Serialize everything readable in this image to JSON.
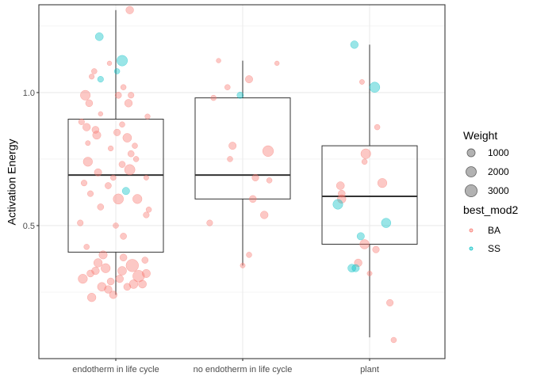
{
  "chart_data": {
    "type": "boxplot+jitter",
    "ylabel": "Activation Energy",
    "xlabel": "",
    "ylim": [
      0.0,
      1.33
    ],
    "yticks": [
      0.5,
      1.0
    ],
    "ytick_labels": [
      "0.5",
      "1.0"
    ],
    "y_minor_gridlines": [
      0.25,
      0.75,
      1.25
    ],
    "grid": true,
    "categories": [
      "endotherm in life cycle",
      "no endotherm in life cycle",
      "plant"
    ],
    "boxes": [
      {
        "category": "endotherm in life cycle",
        "whisker_low": 0.24,
        "q1": 0.4,
        "median": 0.69,
        "q3": 0.9,
        "whisker_high": 1.31
      },
      {
        "category": "no endotherm in life cycle",
        "whisker_low": 0.35,
        "q1": 0.6,
        "median": 0.69,
        "q3": 0.98,
        "whisker_high": 1.12
      },
      {
        "category": "plant",
        "whisker_low": 0.08,
        "q1": 0.43,
        "median": 0.61,
        "q3": 0.8,
        "whisker_high": 1.18
      }
    ],
    "colors": {
      "BA": "#F8766D",
      "SS": "#00BFC4"
    },
    "legend_position": "right",
    "legend": {
      "size_title": "Weight",
      "size_entries": [
        {
          "label": "1000",
          "weight": 1000
        },
        {
          "label": "2000",
          "weight": 2000
        },
        {
          "label": "3000",
          "weight": 3000
        }
      ],
      "color_title": "best_mod2",
      "color_entries": [
        {
          "label": "BA",
          "group": "BA"
        },
        {
          "label": "SS",
          "group": "SS"
        }
      ]
    },
    "points": [
      {
        "cat": 0,
        "x": 0.11,
        "y": 1.31,
        "w": 900,
        "g": "BA"
      },
      {
        "cat": 0,
        "x": -0.13,
        "y": 1.21,
        "w": 1000,
        "g": "SS"
      },
      {
        "cat": 0,
        "x": 0.05,
        "y": 1.12,
        "w": 2200,
        "g": "SS"
      },
      {
        "cat": 0,
        "x": 0.01,
        "y": 1.08,
        "w": 300,
        "g": "SS"
      },
      {
        "cat": 0,
        "x": -0.17,
        "y": 1.08,
        "w": 300,
        "g": "BA"
      },
      {
        "cat": 0,
        "x": -0.19,
        "y": 1.06,
        "w": 250,
        "g": "BA"
      },
      {
        "cat": 0,
        "x": -0.12,
        "y": 1.05,
        "w": 400,
        "g": "SS"
      },
      {
        "cat": 0,
        "x": -0.05,
        "y": 1.11,
        "w": 150,
        "g": "BA"
      },
      {
        "cat": 0,
        "x": 0.06,
        "y": 1.02,
        "w": 300,
        "g": "BA"
      },
      {
        "cat": 0,
        "x": -0.24,
        "y": 0.99,
        "w": 1800,
        "g": "BA"
      },
      {
        "cat": 0,
        "x": 0.02,
        "y": 0.99,
        "w": 500,
        "g": "BA"
      },
      {
        "cat": 0,
        "x": 0.12,
        "y": 0.99,
        "w": 400,
        "g": "BA"
      },
      {
        "cat": 0,
        "x": -0.21,
        "y": 0.96,
        "w": 700,
        "g": "BA"
      },
      {
        "cat": 0,
        "x": 0.1,
        "y": 0.96,
        "w": 900,
        "g": "BA"
      },
      {
        "cat": 0,
        "x": -0.12,
        "y": 0.92,
        "w": 150,
        "g": "BA"
      },
      {
        "cat": 0,
        "x": 0.25,
        "y": 0.91,
        "w": 250,
        "g": "BA"
      },
      {
        "cat": 0,
        "x": -0.27,
        "y": 0.89,
        "w": 400,
        "g": "BA"
      },
      {
        "cat": 0,
        "x": 0.05,
        "y": 0.88,
        "w": 300,
        "g": "BA"
      },
      {
        "cat": 0,
        "x": -0.23,
        "y": 0.87,
        "w": 900,
        "g": "BA"
      },
      {
        "cat": 0,
        "x": -0.16,
        "y": 0.86,
        "w": 700,
        "g": "BA"
      },
      {
        "cat": 0,
        "x": 0.01,
        "y": 0.85,
        "w": 600,
        "g": "BA"
      },
      {
        "cat": 0,
        "x": -0.15,
        "y": 0.84,
        "w": 1100,
        "g": "BA"
      },
      {
        "cat": 0,
        "x": 0.09,
        "y": 0.83,
        "w": 1300,
        "g": "BA"
      },
      {
        "cat": 0,
        "x": -0.22,
        "y": 0.81,
        "w": 200,
        "g": "BA"
      },
      {
        "cat": 0,
        "x": 0.15,
        "y": 0.8,
        "w": 300,
        "g": "BA"
      },
      {
        "cat": 0,
        "x": -0.04,
        "y": 0.79,
        "w": 250,
        "g": "BA"
      },
      {
        "cat": 0,
        "x": 0.12,
        "y": 0.77,
        "w": 500,
        "g": "BA"
      },
      {
        "cat": 0,
        "x": 0.16,
        "y": 0.75,
        "w": 300,
        "g": "BA"
      },
      {
        "cat": 0,
        "x": -0.22,
        "y": 0.74,
        "w": 1500,
        "g": "BA"
      },
      {
        "cat": 0,
        "x": 0.05,
        "y": 0.73,
        "w": 500,
        "g": "BA"
      },
      {
        "cat": 0,
        "x": 0.11,
        "y": 0.71,
        "w": 2100,
        "g": "BA"
      },
      {
        "cat": 0,
        "x": -0.14,
        "y": 0.7,
        "w": 800,
        "g": "BA"
      },
      {
        "cat": 0,
        "x": -0.02,
        "y": 0.68,
        "w": 300,
        "g": "BA"
      },
      {
        "cat": 0,
        "x": 0.24,
        "y": 0.68,
        "w": 200,
        "g": "BA"
      },
      {
        "cat": 0,
        "x": -0.25,
        "y": 0.66,
        "w": 400,
        "g": "BA"
      },
      {
        "cat": 0,
        "x": -0.06,
        "y": 0.65,
        "w": 500,
        "g": "BA"
      },
      {
        "cat": 0,
        "x": 0.08,
        "y": 0.63,
        "w": 800,
        "g": "SS"
      },
      {
        "cat": 0,
        "x": -0.2,
        "y": 0.62,
        "w": 400,
        "g": "BA"
      },
      {
        "cat": 0,
        "x": 0.17,
        "y": 0.6,
        "w": 1500,
        "g": "BA"
      },
      {
        "cat": 0,
        "x": 0.02,
        "y": 0.6,
        "w": 2000,
        "g": "BA"
      },
      {
        "cat": 0,
        "x": -0.12,
        "y": 0.57,
        "w": 500,
        "g": "BA"
      },
      {
        "cat": 0,
        "x": 0.26,
        "y": 0.56,
        "w": 300,
        "g": "BA"
      },
      {
        "cat": 0,
        "x": 0.24,
        "y": 0.54,
        "w": 400,
        "g": "BA"
      },
      {
        "cat": 0,
        "x": -0.28,
        "y": 0.51,
        "w": 400,
        "g": "BA"
      },
      {
        "cat": 0,
        "x": 0.0,
        "y": 0.5,
        "w": 300,
        "g": "BA"
      },
      {
        "cat": 0,
        "x": 0.06,
        "y": 0.46,
        "w": 500,
        "g": "BA"
      },
      {
        "cat": 0,
        "x": -0.23,
        "y": 0.42,
        "w": 300,
        "g": "BA"
      },
      {
        "cat": 0,
        "x": -0.1,
        "y": 0.39,
        "w": 1100,
        "g": "BA"
      },
      {
        "cat": 0,
        "x": 0.06,
        "y": 0.38,
        "w": 700,
        "g": "BA"
      },
      {
        "cat": 0,
        "x": -0.14,
        "y": 0.36,
        "w": 1200,
        "g": "BA"
      },
      {
        "cat": 0,
        "x": 0.23,
        "y": 0.37,
        "w": 500,
        "g": "BA"
      },
      {
        "cat": 0,
        "x": 0.13,
        "y": 0.35,
        "w": 3300,
        "g": "BA"
      },
      {
        "cat": 0,
        "x": -0.08,
        "y": 0.34,
        "w": 1500,
        "g": "BA"
      },
      {
        "cat": 0,
        "x": -0.16,
        "y": 0.33,
        "w": 900,
        "g": "BA"
      },
      {
        "cat": 0,
        "x": 0.05,
        "y": 0.33,
        "w": 1300,
        "g": "BA"
      },
      {
        "cat": 0,
        "x": 0.24,
        "y": 0.32,
        "w": 1100,
        "g": "BA"
      },
      {
        "cat": 0,
        "x": -0.2,
        "y": 0.32,
        "w": 700,
        "g": "BA"
      },
      {
        "cat": 0,
        "x": 0.18,
        "y": 0.31,
        "w": 2800,
        "g": "BA"
      },
      {
        "cat": 0,
        "x": -0.26,
        "y": 0.3,
        "w": 1500,
        "g": "BA"
      },
      {
        "cat": 0,
        "x": 0.03,
        "y": 0.3,
        "w": 900,
        "g": "BA"
      },
      {
        "cat": 0,
        "x": -0.04,
        "y": 0.29,
        "w": 700,
        "g": "BA"
      },
      {
        "cat": 0,
        "x": 0.14,
        "y": 0.28,
        "w": 1300,
        "g": "BA"
      },
      {
        "cat": 0,
        "x": 0.21,
        "y": 0.28,
        "w": 1000,
        "g": "BA"
      },
      {
        "cat": 0,
        "x": -0.11,
        "y": 0.27,
        "w": 1300,
        "g": "BA"
      },
      {
        "cat": 0,
        "x": 0.09,
        "y": 0.27,
        "w": 700,
        "g": "BA"
      },
      {
        "cat": 0,
        "x": -0.06,
        "y": 0.26,
        "w": 900,
        "g": "BA"
      },
      {
        "cat": 0,
        "x": -0.02,
        "y": 0.24,
        "w": 900,
        "g": "BA"
      },
      {
        "cat": 0,
        "x": -0.19,
        "y": 0.23,
        "w": 1200,
        "g": "BA"
      },
      {
        "cat": 1,
        "x": -0.19,
        "y": 1.12,
        "w": 150,
        "g": "BA"
      },
      {
        "cat": 1,
        "x": 0.27,
        "y": 1.11,
        "w": 150,
        "g": "BA"
      },
      {
        "cat": 1,
        "x": 0.05,
        "y": 1.05,
        "w": 800,
        "g": "BA"
      },
      {
        "cat": 1,
        "x": -0.12,
        "y": 1.02,
        "w": 300,
        "g": "BA"
      },
      {
        "cat": 1,
        "x": -0.02,
        "y": 0.99,
        "w": 500,
        "g": "SS"
      },
      {
        "cat": 1,
        "x": -0.23,
        "y": 0.98,
        "w": 300,
        "g": "BA"
      },
      {
        "cat": 1,
        "x": -0.08,
        "y": 0.8,
        "w": 800,
        "g": "BA"
      },
      {
        "cat": 1,
        "x": 0.2,
        "y": 0.78,
        "w": 2300,
        "g": "BA"
      },
      {
        "cat": 1,
        "x": -0.1,
        "y": 0.75,
        "w": 300,
        "g": "BA"
      },
      {
        "cat": 1,
        "x": 0.1,
        "y": 0.68,
        "w": 600,
        "g": "BA"
      },
      {
        "cat": 1,
        "x": 0.21,
        "y": 0.67,
        "w": 300,
        "g": "BA"
      },
      {
        "cat": 1,
        "x": 0.08,
        "y": 0.6,
        "w": 700,
        "g": "BA"
      },
      {
        "cat": 1,
        "x": 0.17,
        "y": 0.54,
        "w": 900,
        "g": "BA"
      },
      {
        "cat": 1,
        "x": -0.26,
        "y": 0.51,
        "w": 400,
        "g": "BA"
      },
      {
        "cat": 1,
        "x": 0.05,
        "y": 0.39,
        "w": 300,
        "g": "BA"
      },
      {
        "cat": 1,
        "x": 0.0,
        "y": 0.35,
        "w": 200,
        "g": "BA"
      },
      {
        "cat": 2,
        "x": -0.12,
        "y": 1.18,
        "w": 900,
        "g": "SS"
      },
      {
        "cat": 2,
        "x": 0.04,
        "y": 1.02,
        "w": 2000,
        "g": "SS"
      },
      {
        "cat": 2,
        "x": -0.06,
        "y": 1.04,
        "w": 200,
        "g": "BA"
      },
      {
        "cat": 2,
        "x": 0.06,
        "y": 0.87,
        "w": 300,
        "g": "BA"
      },
      {
        "cat": 2,
        "x": -0.03,
        "y": 0.77,
        "w": 1800,
        "g": "BA"
      },
      {
        "cat": 2,
        "x": -0.04,
        "y": 0.74,
        "w": 300,
        "g": "BA"
      },
      {
        "cat": 2,
        "x": 0.1,
        "y": 0.66,
        "w": 1500,
        "g": "BA"
      },
      {
        "cat": 2,
        "x": -0.23,
        "y": 0.65,
        "w": 1000,
        "g": "BA"
      },
      {
        "cat": 2,
        "x": -0.22,
        "y": 0.62,
        "w": 700,
        "g": "BA"
      },
      {
        "cat": 2,
        "x": -0.22,
        "y": 0.6,
        "w": 1200,
        "g": "BA"
      },
      {
        "cat": 2,
        "x": -0.25,
        "y": 0.58,
        "w": 1800,
        "g": "SS"
      },
      {
        "cat": 2,
        "x": 0.13,
        "y": 0.51,
        "w": 1600,
        "g": "SS"
      },
      {
        "cat": 2,
        "x": -0.07,
        "y": 0.46,
        "w": 800,
        "g": "SS"
      },
      {
        "cat": 2,
        "x": -0.04,
        "y": 0.43,
        "w": 1600,
        "g": "BA"
      },
      {
        "cat": 2,
        "x": 0.05,
        "y": 0.41,
        "w": 600,
        "g": "BA"
      },
      {
        "cat": 2,
        "x": -0.09,
        "y": 0.36,
        "w": 900,
        "g": "BA"
      },
      {
        "cat": 2,
        "x": -0.14,
        "y": 0.34,
        "w": 1000,
        "g": "SS"
      },
      {
        "cat": 2,
        "x": -0.11,
        "y": 0.34,
        "w": 800,
        "g": "SS"
      },
      {
        "cat": 2,
        "x": 0.0,
        "y": 0.32,
        "w": 200,
        "g": "BA"
      },
      {
        "cat": 2,
        "x": 0.16,
        "y": 0.21,
        "w": 600,
        "g": "BA"
      },
      {
        "cat": 2,
        "x": 0.19,
        "y": 0.07,
        "w": 300,
        "g": "BA"
      }
    ]
  }
}
